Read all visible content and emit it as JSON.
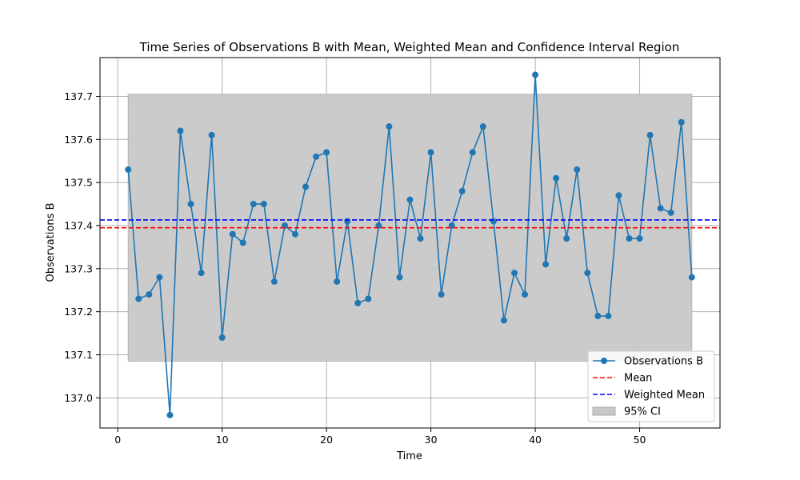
{
  "chart_data": {
    "type": "line",
    "title": "Time Series of Observations B with Mean, Weighted Mean and Confidence Interval Region",
    "xlabel": "Time",
    "ylabel": "Observations B",
    "xlim": [
      -1.7,
      57.7
    ],
    "ylim": [
      136.93,
      137.79
    ],
    "xticks": [
      0,
      10,
      20,
      30,
      40,
      50
    ],
    "yticks": [
      137.0,
      137.1,
      137.2,
      137.3,
      137.4,
      137.5,
      137.6,
      137.7
    ],
    "grid": true,
    "legend_position": "lower-right",
    "series": [
      {
        "name": "Observations B",
        "color": "#1f77b4",
        "marker": "circle",
        "x": [
          1,
          2,
          3,
          4,
          5,
          6,
          7,
          8,
          9,
          10,
          11,
          12,
          13,
          14,
          15,
          16,
          17,
          18,
          19,
          20,
          21,
          22,
          23,
          24,
          25,
          26,
          27,
          28,
          29,
          30,
          31,
          32,
          33,
          34,
          35,
          36,
          37,
          38,
          39,
          40,
          41,
          42,
          43,
          44,
          45,
          46,
          47,
          48,
          49,
          50,
          51,
          52,
          53,
          54,
          55
        ],
        "y": [
          137.53,
          137.23,
          137.24,
          137.28,
          136.96,
          137.62,
          137.45,
          137.29,
          137.61,
          137.14,
          137.38,
          137.36,
          137.45,
          137.45,
          137.27,
          137.4,
          137.38,
          137.49,
          137.56,
          137.57,
          137.27,
          137.41,
          137.22,
          137.23,
          137.4,
          137.63,
          137.28,
          137.46,
          137.37,
          137.57,
          137.24,
          137.4,
          137.48,
          137.57,
          137.63,
          137.41,
          137.18,
          137.29,
          137.24,
          137.75,
          137.31,
          137.51,
          137.37,
          137.53,
          137.29,
          137.19,
          137.19,
          137.47,
          137.37,
          137.37,
          137.61,
          137.44,
          137.43,
          137.64,
          137.28
        ]
      }
    ],
    "mean": {
      "name": "Mean",
      "value": 137.395,
      "color": "#ff0000",
      "style": "dashed"
    },
    "weighted_mean": {
      "name": "Weighted Mean",
      "value": 137.413,
      "color": "#0000ff",
      "style": "dashed"
    },
    "confidence_interval": {
      "name": "95% CI",
      "x_range": [
        1,
        55
      ],
      "y_range": [
        137.085,
        137.705
      ],
      "color": "#c8c8c8"
    }
  }
}
